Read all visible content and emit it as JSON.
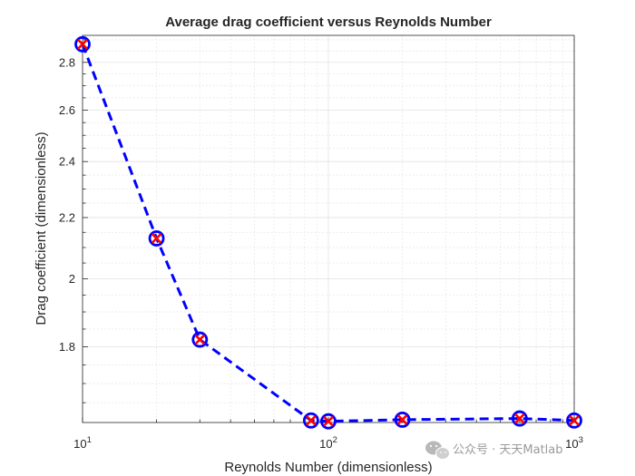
{
  "chart_data": {
    "type": "line",
    "title": "Average drag coefficient versus Reynolds Number",
    "xlabel": "Reynolds Number (dimensionless)",
    "ylabel": "Drag coefficient (dimensionless)",
    "xscale": "log",
    "yscale": "log",
    "xlim": [
      10,
      1000
    ],
    "ylim": [
      1.6,
      2.92
    ],
    "grid": "major and minor",
    "x_ticks": [
      10,
      100,
      1000
    ],
    "x_tick_labels": [
      {
        "base": "10",
        "exp": "1"
      },
      {
        "base": "10",
        "exp": "2"
      },
      {
        "base": "10",
        "exp": "3"
      }
    ],
    "y_ticks": [
      1.8,
      2,
      2.2,
      2.4,
      2.6,
      2.8
    ],
    "y_tick_labels": [
      "1.8",
      "2",
      "2.2",
      "2.4",
      "2.6",
      "2.8"
    ],
    "series": [
      {
        "line_style": "dashed",
        "markers": "circle with x",
        "color": "#0000ff",
        "marker_circle_color": "#0000ff",
        "marker_x_color": "#ff0000",
        "x": [
          10,
          20,
          30,
          85,
          100,
          200,
          600,
          1000
        ],
        "y": [
          2.88,
          2.13,
          1.82,
          1.605,
          1.603,
          1.607,
          1.61,
          1.605
        ]
      }
    ]
  },
  "watermark": {
    "text": "公众号 · 天天Matlab",
    "color": "#9a9a9a"
  }
}
